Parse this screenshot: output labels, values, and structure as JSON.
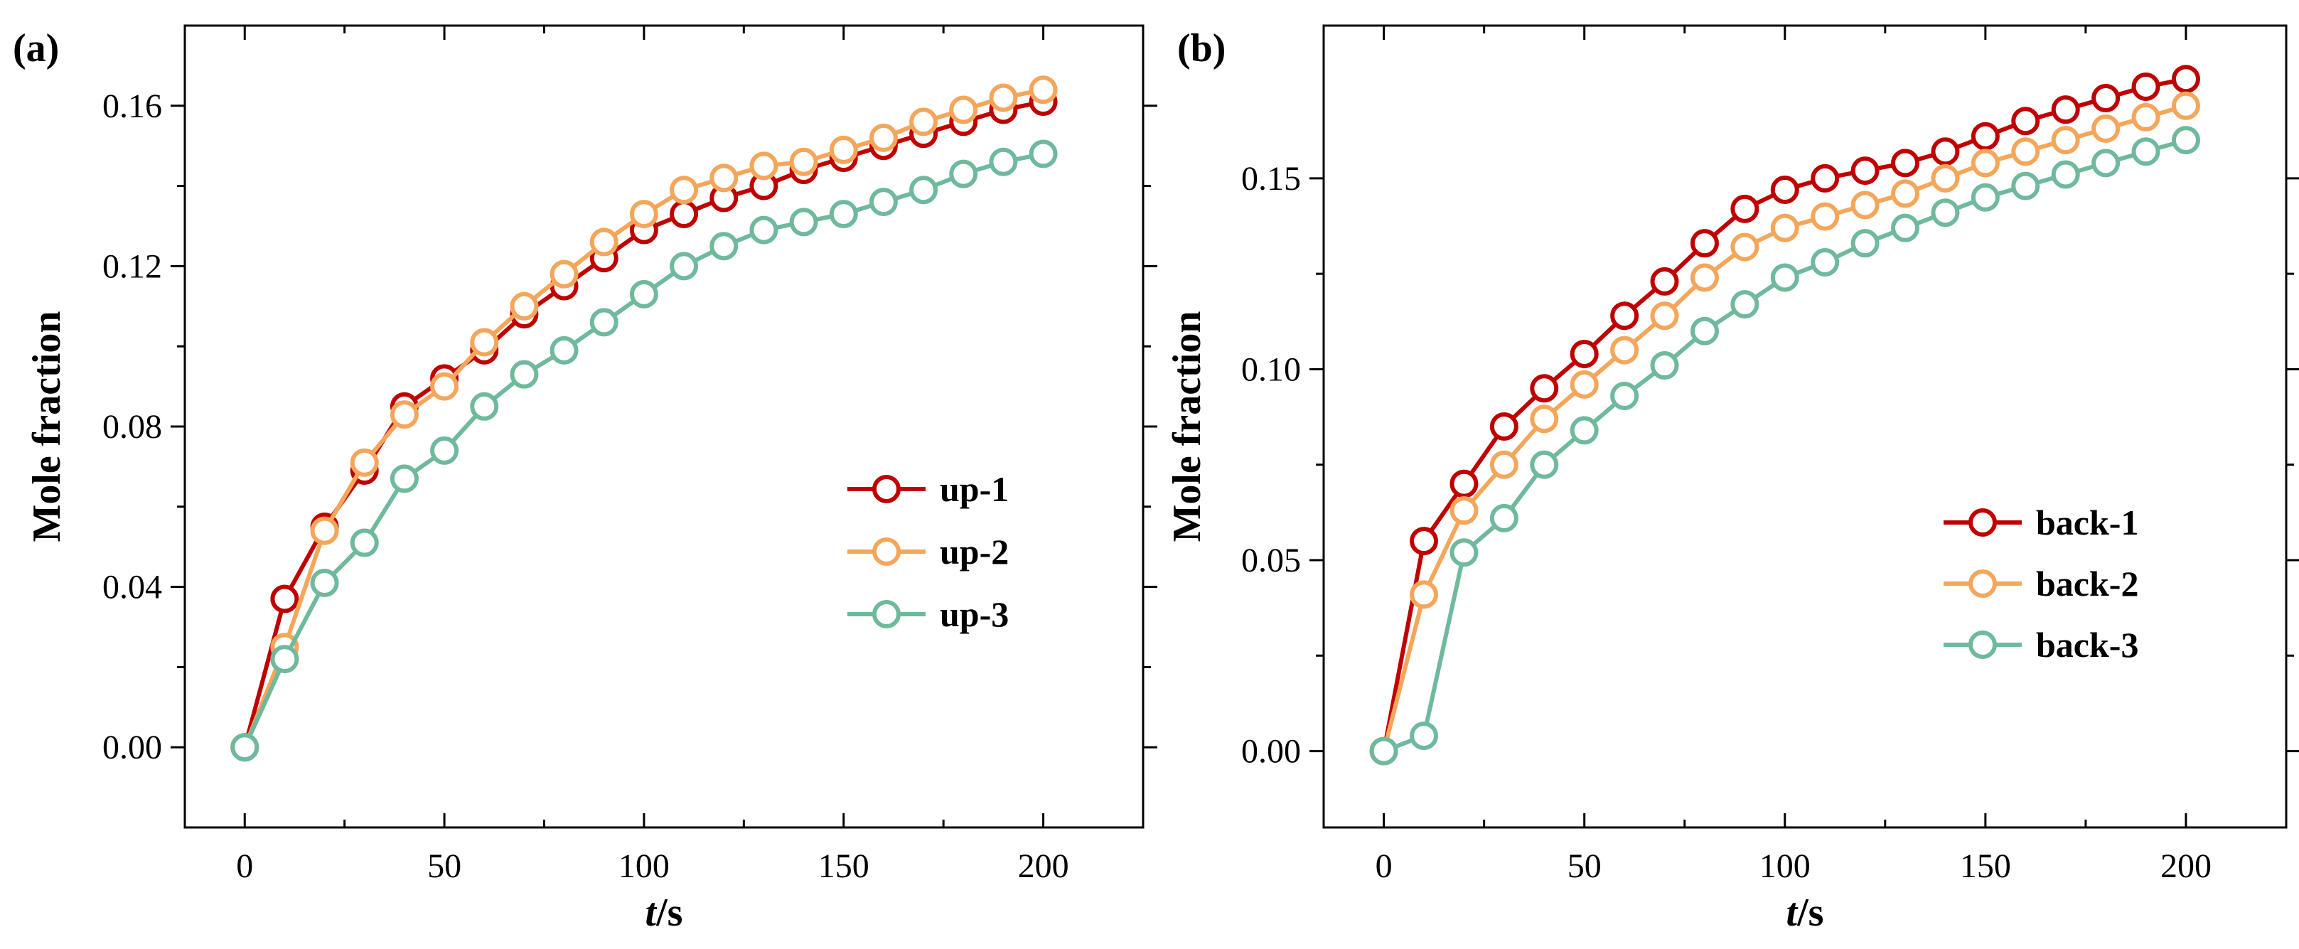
{
  "chart_data": [
    {
      "type": "line",
      "panel_label": "(a)",
      "xlabel": {
        "italic": "t",
        "rest": "/s"
      },
      "ylabel": "Mole fraction",
      "xlim": [
        -15,
        225
      ],
      "ylim": [
        -0.02,
        0.18
      ],
      "xticks": [
        0,
        50,
        100,
        150,
        200
      ],
      "xtick_labels": [
        "0",
        "50",
        "100",
        "150",
        "200"
      ],
      "yticks": [
        0.0,
        0.04,
        0.08,
        0.12,
        0.16
      ],
      "ytick_labels": [
        "0.00",
        "0.04",
        "0.08",
        "0.12",
        "0.16"
      ],
      "legend_position": "center-right",
      "x": [
        0,
        10,
        20,
        30,
        40,
        50,
        60,
        70,
        80,
        90,
        100,
        110,
        120,
        130,
        140,
        150,
        160,
        170,
        180,
        190,
        200
      ],
      "series": [
        {
          "name": "up-1",
          "color": "#c00000",
          "values": [
            0.0,
            0.037,
            0.055,
            0.069,
            0.085,
            0.092,
            0.099,
            0.108,
            0.115,
            0.122,
            0.129,
            0.133,
            0.137,
            0.14,
            0.144,
            0.147,
            0.15,
            0.153,
            0.156,
            0.159,
            0.161
          ]
        },
        {
          "name": "up-2",
          "color": "#f4a65a",
          "values": [
            0.0,
            0.025,
            0.054,
            0.071,
            0.083,
            0.09,
            0.101,
            0.11,
            0.118,
            0.126,
            0.133,
            0.139,
            0.142,
            0.145,
            0.146,
            0.149,
            0.152,
            0.156,
            0.159,
            0.162,
            0.164
          ]
        },
        {
          "name": "up-3",
          "color": "#6fb99c",
          "values": [
            0.0,
            0.022,
            0.041,
            0.051,
            0.067,
            0.074,
            0.085,
            0.093,
            0.099,
            0.106,
            0.113,
            0.12,
            0.125,
            0.129,
            0.131,
            0.133,
            0.136,
            0.139,
            0.143,
            0.146,
            0.148
          ]
        }
      ]
    },
    {
      "type": "line",
      "panel_label": "(b)",
      "xlabel": {
        "italic": "t",
        "rest": "/s"
      },
      "ylabel": "Mole fraction",
      "xlim": [
        -15,
        225
      ],
      "ylim": [
        -0.02,
        0.19
      ],
      "xticks": [
        0,
        50,
        100,
        150,
        200
      ],
      "xtick_labels": [
        "0",
        "50",
        "100",
        "150",
        "200"
      ],
      "yticks": [
        0.0,
        0.05,
        0.1,
        0.15
      ],
      "ytick_labels": [
        "0.00",
        "0.05",
        "0.10",
        "0.15"
      ],
      "legend_position": "lower-right",
      "x": [
        0,
        10,
        20,
        30,
        40,
        50,
        60,
        70,
        80,
        90,
        100,
        110,
        120,
        130,
        140,
        150,
        160,
        170,
        180,
        190,
        200
      ],
      "series": [
        {
          "name": "back-1",
          "color": "#c00000",
          "values": [
            0.0,
            0.055,
            0.07,
            0.085,
            0.095,
            0.104,
            0.114,
            0.123,
            0.133,
            0.142,
            0.147,
            0.15,
            0.152,
            0.154,
            0.157,
            0.161,
            0.165,
            0.168,
            0.171,
            0.174,
            0.176
          ]
        },
        {
          "name": "back-2",
          "color": "#f4a65a",
          "values": [
            0.0,
            0.041,
            0.063,
            0.075,
            0.087,
            0.096,
            0.105,
            0.114,
            0.124,
            0.132,
            0.137,
            0.14,
            0.143,
            0.146,
            0.15,
            0.154,
            0.157,
            0.16,
            0.163,
            0.166,
            0.169
          ]
        },
        {
          "name": "back-3",
          "color": "#6fb99c",
          "values": [
            0.0,
            0.004,
            0.052,
            0.061,
            0.075,
            0.084,
            0.093,
            0.101,
            0.11,
            0.117,
            0.124,
            0.128,
            0.133,
            0.137,
            0.141,
            0.145,
            0.148,
            0.151,
            0.154,
            0.157,
            0.16
          ]
        }
      ]
    }
  ]
}
